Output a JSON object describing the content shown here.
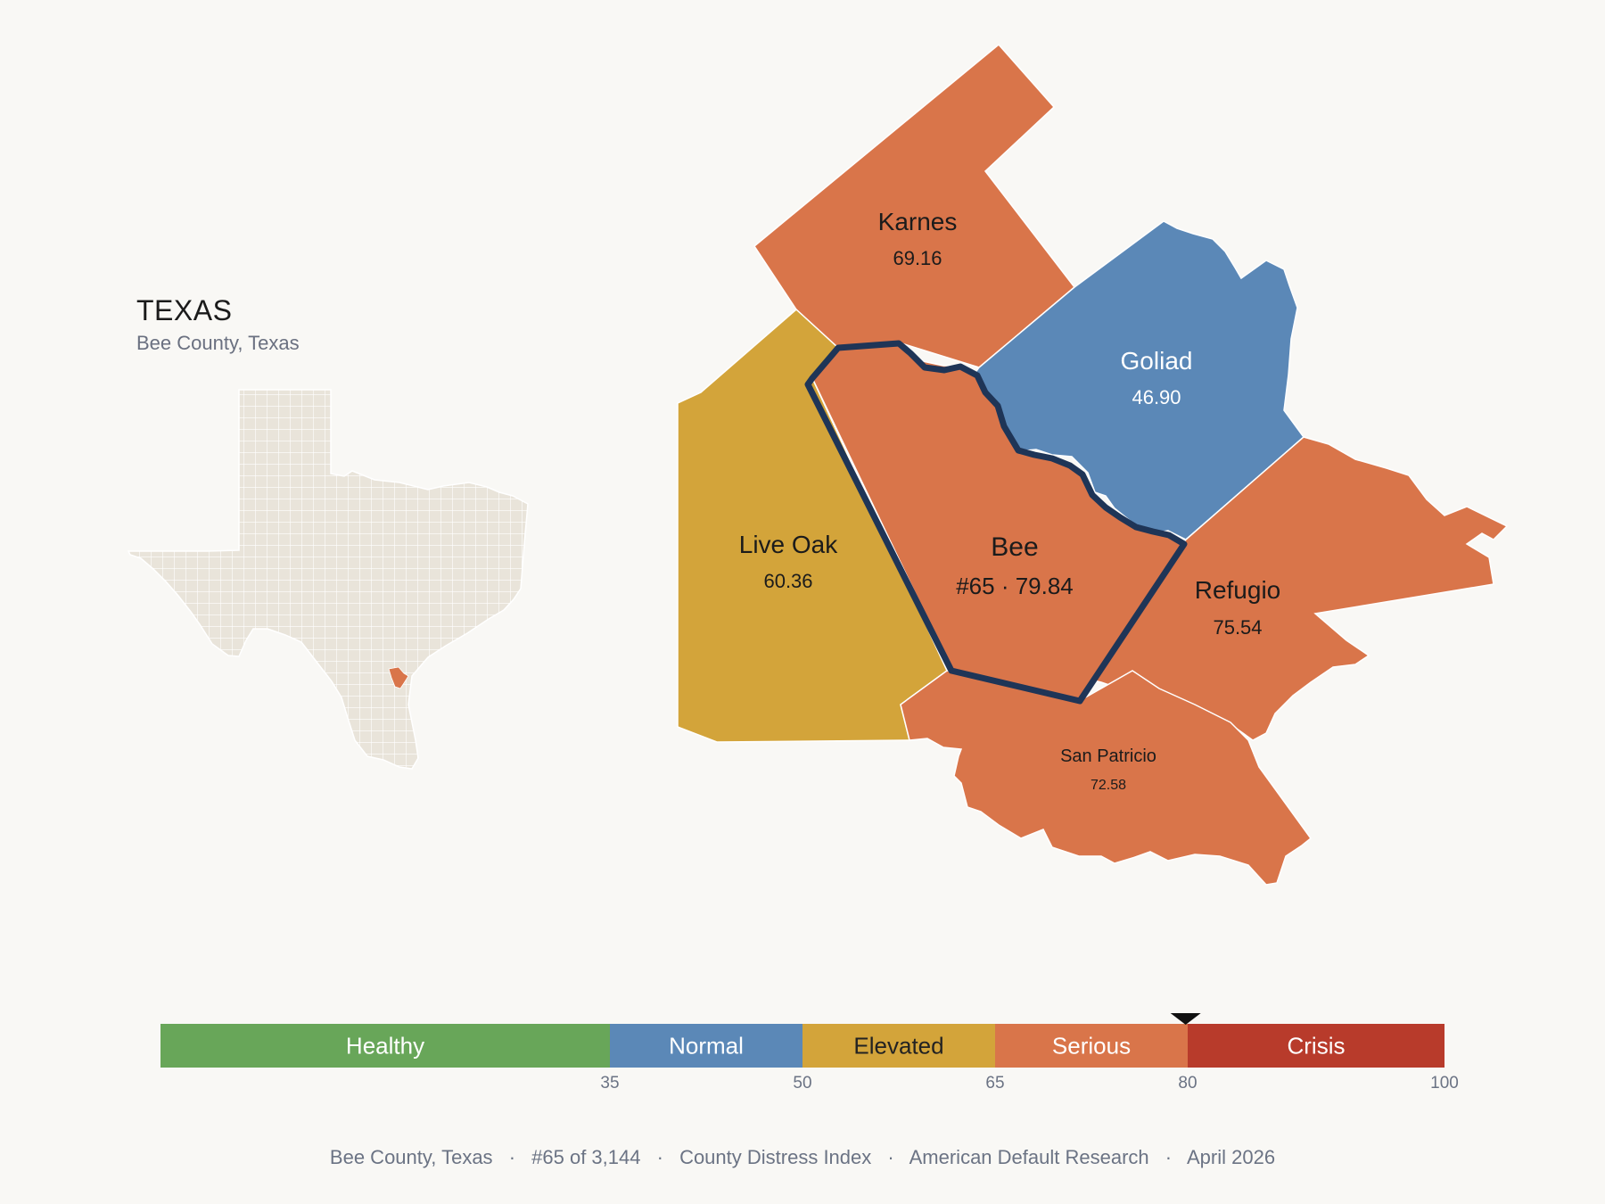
{
  "inset": {
    "state_title": "TEXAS",
    "subtitle": "Bee County, Texas",
    "colors": {
      "land": "#e9e4da",
      "border": "#ffffff",
      "highlight": "#d9754a"
    }
  },
  "counties": [
    {
      "id": "karnes",
      "name": "Karnes",
      "value": "69.16",
      "category": "Serious",
      "color": "#d9754a"
    },
    {
      "id": "goliad",
      "name": "Goliad",
      "value": "46.90",
      "category": "Normal",
      "color": "#5b88b7"
    },
    {
      "id": "live-oak",
      "name": "Live Oak",
      "value": "60.36",
      "category": "Elevated",
      "color": "#d3a43a"
    },
    {
      "id": "bee",
      "name": "Bee",
      "value": "#65 · 79.84",
      "category": "Serious",
      "color": "#d9754a",
      "selected": true
    },
    {
      "id": "refugio",
      "name": "Refugio",
      "value": "75.54",
      "category": "Serious",
      "color": "#d9754a"
    },
    {
      "id": "san-patricio",
      "name": "San Patricio",
      "value": "72.58",
      "category": "Serious",
      "color": "#d9754a"
    }
  ],
  "selected_outline_color": "#1f3557",
  "legend": {
    "min": 0,
    "max": 100,
    "marker_value": 79.84,
    "segments": [
      {
        "label": "Healthy",
        "from": 0,
        "to": 35,
        "color": "#68a659",
        "text_color": "#ffffff"
      },
      {
        "label": "Normal",
        "from": 35,
        "to": 50,
        "color": "#5b88b7",
        "text_color": "#ffffff"
      },
      {
        "label": "Elevated",
        "from": 50,
        "to": 65,
        "color": "#d3a43a",
        "text_color": "#222222"
      },
      {
        "label": "Serious",
        "from": 65,
        "to": 80,
        "color": "#d9754a",
        "text_color": "#ffffff"
      },
      {
        "label": "Crisis",
        "from": 80,
        "to": 100,
        "color": "#b83b2b",
        "text_color": "#ffffff"
      }
    ],
    "ticks": [
      "35",
      "50",
      "65",
      "80",
      "100"
    ]
  },
  "footer": {
    "county": "Bee County, Texas",
    "rank": "#65 of 3,144",
    "index": "County Distress Index",
    "org": "American Default Research",
    "date": "April 2026",
    "separator": "·"
  }
}
